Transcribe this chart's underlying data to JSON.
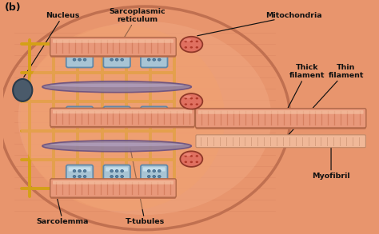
{
  "title": "(b)",
  "bg_color": "#f5c9a0",
  "labels": {
    "nucleus": "Nucleus",
    "sarcoplasmic": "Sarcoplasmic\nreticulum",
    "mitochondria": "Mitochondria",
    "thick_filament": "Thick\nfilament",
    "thin_filament": "Thin\nfilament",
    "myofibril": "Myofibril",
    "sarcolemma": "Sarcolemma",
    "t_tubules": "T-tubules"
  },
  "colors": {
    "outer_muscle": "#e8956d",
    "muscle_fiber": "#f0a882",
    "sarcolemma": "#d4a017",
    "sarcoplasmic_reticulum": "#a8c4d4",
    "sr_inner": "#b8d4e4",
    "mitochondria": "#e07050",
    "nucleus": "#4a5a6a",
    "t_tubule": "#9080a0",
    "myofibril_thick": "#e8987a",
    "myofibril_thin": "#f0b090",
    "annotation_color": "#1a1a1a",
    "filament_stripe": "#d07858"
  },
  "figsize": [
    4.74,
    2.93
  ],
  "dpi": 100
}
